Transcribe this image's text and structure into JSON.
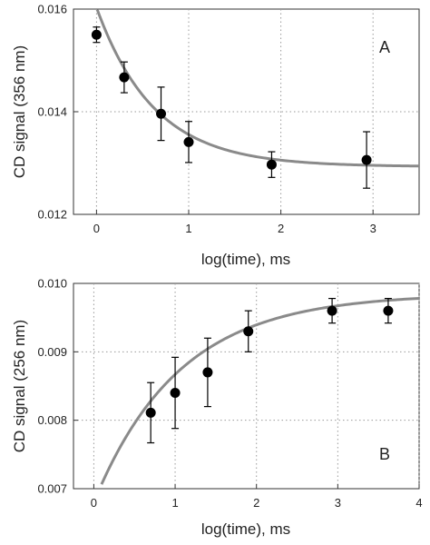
{
  "chart_data": [
    {
      "type": "scatter",
      "panel_label": "A",
      "xlabel": "log(time), ms",
      "ylabel": "CD signal (356 nm)",
      "xlim": [
        -0.25,
        3.5
      ],
      "ylim": [
        0.012,
        0.016
      ],
      "xticks": [
        "0",
        "1",
        "2",
        "3"
      ],
      "xtick_values": [
        0,
        1,
        2,
        3
      ],
      "yticks": [
        "0.012",
        "0.014",
        "0.016"
      ],
      "ytick_values": [
        0.012,
        0.014,
        0.016
      ],
      "grid": true,
      "points": [
        {
          "x": 0.0,
          "y": 0.0155,
          "err": 0.00015
        },
        {
          "x": 0.3,
          "y": 0.01467,
          "err": 0.0003
        },
        {
          "x": 0.7,
          "y": 0.01396,
          "err": 0.00052
        },
        {
          "x": 1.0,
          "y": 0.01341,
          "err": 0.0004
        },
        {
          "x": 1.9,
          "y": 0.01297,
          "err": 0.00025
        },
        {
          "x": 2.93,
          "y": 0.01306,
          "err": 0.00055
        }
      ],
      "fit": {
        "model": "exponential_decay",
        "plateau": 0.01293,
        "amplitude": 0.0031,
        "k": 1.6
      }
    },
    {
      "type": "scatter",
      "panel_label": "B",
      "xlabel": "log(time), ms",
      "ylabel": "CD signal (256 nm)",
      "xlim": [
        -0.25,
        4.0
      ],
      "ylim": [
        0.007,
        0.01
      ],
      "xticks": [
        "0",
        "1",
        "2",
        "3",
        "4"
      ],
      "xtick_values": [
        0,
        1,
        2,
        3,
        4
      ],
      "yticks": [
        "0.007",
        "0.008",
        "0.009",
        "0.010"
      ],
      "ytick_values": [
        0.007,
        0.008,
        0.009,
        0.01
      ],
      "grid": true,
      "points": [
        {
          "x": 0.7,
          "y": 0.00811,
          "err": 0.00044
        },
        {
          "x": 1.0,
          "y": 0.0084,
          "err": 0.00052
        },
        {
          "x": 1.4,
          "y": 0.0087,
          "err": 0.0005
        },
        {
          "x": 1.9,
          "y": 0.0093,
          "err": 0.0003
        },
        {
          "x": 2.93,
          "y": 0.0096,
          "err": 0.00018
        },
        {
          "x": 3.62,
          "y": 0.0096,
          "err": 0.00018
        }
      ],
      "fit": {
        "model": "exponential_rise",
        "plateau": 0.00985,
        "amplitude": 0.00305,
        "k": 0.95
      }
    }
  ],
  "colors": {
    "points": "#000000",
    "fit_line": "#8a8a8a",
    "grid": "#9a9a9a",
    "axis": "#333333"
  }
}
